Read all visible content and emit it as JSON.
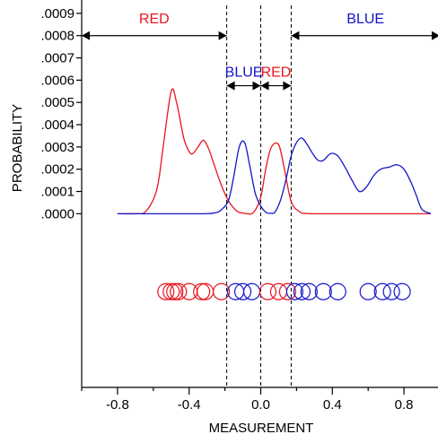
{
  "chart_data": {
    "type": "line",
    "xlabel": "MEASUREMENT",
    "ylabel": "PROBABILITY",
    "xlim": [
      -1.0,
      1.0
    ],
    "ylim": [
      -0.00078,
      0.00096
    ],
    "x_ticks": [
      {
        "value": -0.8,
        "label": "-0.8"
      },
      {
        "value": -0.4,
        "label": "-0.4"
      },
      {
        "value": 0.0,
        "label": "0.0"
      },
      {
        "value": 0.4,
        "label": "0.4"
      },
      {
        "value": 0.8,
        "label": "0.8"
      }
    ],
    "x_minor_ticks": [
      -1.0,
      -0.6,
      -0.2,
      0.2,
      0.6,
      1.0
    ],
    "y_ticks": [
      {
        "value": 0.0,
        "label": ".0000"
      },
      {
        "value": 0.0001,
        "label": ".0001"
      },
      {
        "value": 0.0002,
        "label": ".0002"
      },
      {
        "value": 0.0003,
        "label": ".0003"
      },
      {
        "value": 0.0004,
        "label": ".0004"
      },
      {
        "value": 0.0005,
        "label": ".0005"
      },
      {
        "value": 0.0006,
        "label": ".0006"
      },
      {
        "value": 0.0007,
        "label": ".0007"
      },
      {
        "value": 0.0008,
        "label": ".0008"
      },
      {
        "value": 0.0009,
        "label": ".0009"
      }
    ],
    "colors": {
      "red": "#e8141e",
      "blue": "#1414c8",
      "axis": "#000000"
    },
    "series": [
      {
        "color": "red",
        "x": [
          -0.8,
          -0.7,
          -0.64,
          -0.58,
          -0.545,
          -0.5,
          -0.47,
          -0.43,
          -0.4,
          -0.38,
          -0.35,
          -0.32,
          -0.29,
          -0.26,
          -0.23,
          -0.2,
          -0.17,
          -0.13,
          -0.08,
          -0.04,
          0.0,
          0.03,
          0.06,
          0.1,
          0.13,
          0.17,
          0.22,
          0.26,
          0.3,
          0.4,
          0.6,
          0.8,
          0.95
        ],
        "y": [
          0.0,
          5e-07,
          1.2e-05,
          0.00011,
          0.0003,
          0.00055,
          0.0005,
          0.00034,
          0.00028,
          0.00027,
          0.0003,
          0.00033,
          0.00029,
          0.00022,
          0.00015,
          9e-05,
          4.5e-05,
          1e-05,
          1e-06,
          6e-06,
          7.5e-05,
          0.00021,
          0.0003,
          0.00031,
          0.00021,
          5.5e-05,
          7e-06,
          1e-06,
          0.0,
          0.0,
          0.0,
          0.0,
          0.0
        ]
      },
      {
        "color": "blue",
        "x": [
          -0.8,
          -0.6,
          -0.4,
          -0.3,
          -0.25,
          -0.22,
          -0.18,
          -0.15,
          -0.12,
          -0.09,
          -0.06,
          -0.03,
          0.0,
          0.03,
          0.06,
          0.08,
          0.11,
          0.14,
          0.17,
          0.2,
          0.23,
          0.26,
          0.29,
          0.32,
          0.35,
          0.39,
          0.43,
          0.47,
          0.51,
          0.55,
          0.59,
          0.63,
          0.67,
          0.72,
          0.76,
          0.8,
          0.84,
          0.87,
          0.9,
          0.95
        ],
        "y": [
          0.0,
          0.0,
          0.0,
          5e-07,
          5e-06,
          1.8e-05,
          6e-05,
          0.00017,
          0.0003,
          0.00032,
          0.00021,
          9e-05,
          3.5e-05,
          6e-06,
          2e-06,
          8e-06,
          6e-05,
          0.00015,
          0.00026,
          0.00032,
          0.00034,
          0.00031,
          0.00027,
          0.00024,
          0.00024,
          0.00027,
          0.00026,
          0.00021,
          0.00015,
          0.0001,
          0.00012,
          0.00017,
          0.0002,
          0.00021,
          0.00022,
          0.0002,
          0.00014,
          8e-05,
          2e-05,
          0.0
        ]
      }
    ],
    "observations": [
      {
        "x": -0.53,
        "color": "red"
      },
      {
        "x": -0.5,
        "color": "red"
      },
      {
        "x": -0.48,
        "color": "red"
      },
      {
        "x": -0.46,
        "color": "red"
      },
      {
        "x": -0.4,
        "color": "red"
      },
      {
        "x": -0.33,
        "color": "red"
      },
      {
        "x": -0.31,
        "color": "red"
      },
      {
        "x": -0.22,
        "color": "red"
      },
      {
        "x": -0.14,
        "color": "blue"
      },
      {
        "x": -0.1,
        "color": "blue"
      },
      {
        "x": -0.05,
        "color": "blue"
      },
      {
        "x": 0.04,
        "color": "red"
      },
      {
        "x": 0.1,
        "color": "red"
      },
      {
        "x": 0.15,
        "color": "red"
      },
      {
        "x": 0.19,
        "color": "blue"
      },
      {
        "x": 0.23,
        "color": "blue"
      },
      {
        "x": 0.27,
        "color": "blue"
      },
      {
        "x": 0.35,
        "color": "blue"
      },
      {
        "x": 0.43,
        "color": "blue"
      },
      {
        "x": 0.6,
        "color": "blue"
      },
      {
        "x": 0.68,
        "color": "blue"
      },
      {
        "x": 0.73,
        "color": "blue"
      },
      {
        "x": 0.79,
        "color": "blue"
      }
    ],
    "observation_y": -0.00035,
    "boundaries": [
      -0.19,
      0.0,
      0.17
    ],
    "regions": [
      {
        "label": "RED",
        "color": "red",
        "from": -1.0,
        "to": -0.19,
        "y": 0.0008,
        "label_y": 0.00088
      },
      {
        "label": "BLUE",
        "color": "blue",
        "from": -0.19,
        "to": 0.0,
        "y": 0.000575,
        "label_y": 0.00064
      },
      {
        "label": "RED",
        "color": "red",
        "from": 0.0,
        "to": 0.17,
        "y": 0.000575,
        "label_y": 0.00064
      },
      {
        "label": "BLUE",
        "color": "blue",
        "from": 0.17,
        "to": 1.0,
        "y": 0.0008,
        "label_y": 0.00088
      }
    ]
  }
}
